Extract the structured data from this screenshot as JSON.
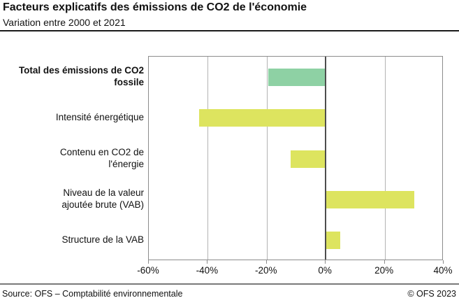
{
  "header": {
    "title": "Facteurs explicatifs des émissions de CO2 de l'économie",
    "subtitle": "Variation entre 2000 et 2021"
  },
  "footer": {
    "source": "Source: OFS – Comptabilité environnementale",
    "copyright": "© OFS 2023"
  },
  "colors": {
    "total_bar": "#8ed1a4",
    "factor_bar": "#dde45f",
    "gridline": "#b3b3b3",
    "zero_line": "#4d4d4d",
    "plot_border": "#8c8c8c"
  },
  "chart_data": {
    "type": "bar",
    "orientation": "horizontal",
    "title": "Facteurs explicatifs des émissions de CO2 de l'économie",
    "subtitle": "Variation entre 2000 et 2021",
    "unit": "%",
    "categories": [
      "Total des émissions de CO2 fossile",
      "Intensité énergétique",
      "Contenu en CO2 de l'énergie",
      "Niveau de la valeur ajoutée brute (VAB)",
      "Structure de la VAB"
    ],
    "label_lines": [
      [
        "Total des émissions de CO2",
        "fossile"
      ],
      [
        "Intensité énergétique"
      ],
      [
        "Contenu en CO2 de",
        "l'énergie"
      ],
      [
        "Niveau de la valeur",
        "ajoutée brute (VAB)"
      ],
      [
        "Structure de la VAB"
      ]
    ],
    "values": [
      -19.5,
      -43,
      -12,
      30,
      5
    ],
    "bar_colors": [
      "#8ed1a4",
      "#dde45f",
      "#dde45f",
      "#dde45f",
      "#dde45f"
    ],
    "bold_category_index": 0,
    "xlim": [
      -60,
      40
    ],
    "x_tick_values": [
      -60,
      -40,
      -20,
      0,
      20,
      40
    ],
    "x_tick_labels": [
      "-60%",
      "-40%",
      "-20%",
      "0%",
      "20%",
      "40%"
    ],
    "grid": true,
    "legend": "none"
  }
}
